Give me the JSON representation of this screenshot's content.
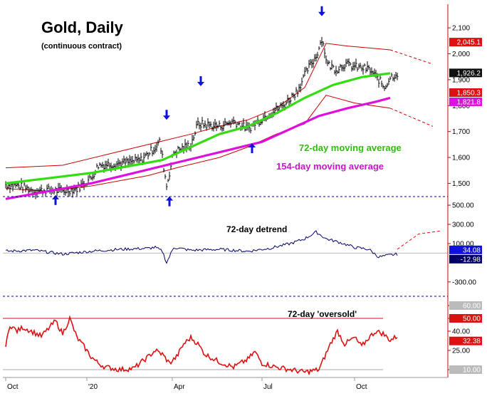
{
  "colors": {
    "price_bars": "#000000",
    "channel": "#cc0000",
    "ma72": "#33dd11",
    "ma154": "#dd11dd",
    "arrows": "#1111dd",
    "detrend": "#000066",
    "oversold": "#dd1111",
    "divider": "#000099",
    "right_axis": "#cc0000"
  },
  "x_axis": {
    "labels": [
      {
        "text": "Oct",
        "index": 0
      },
      {
        "text": "'20",
        "index": 57
      },
      {
        "text": "Apr",
        "index": 117
      },
      {
        "text": "Jul",
        "index": 180
      },
      {
        "text": "Oct",
        "index": 245
      }
    ]
  },
  "chart_data": [
    {
      "type": "line",
      "title": "Gold, Daily",
      "subtitle": "(continuous contract)",
      "y_ticks": [
        1500,
        1600,
        1700,
        1800,
        1900,
        2000,
        2100
      ],
      "y_tick_labels": [
        "1,500",
        "1,600",
        "1,700",
        "1,800",
        "1,900",
        "2,000",
        "2,100"
      ],
      "ylim": [
        1460,
        2180
      ],
      "n_points": 260,
      "price_keypoints": [
        [
          0,
          1495
        ],
        [
          10,
          1490
        ],
        [
          20,
          1470
        ],
        [
          30,
          1475
        ],
        [
          40,
          1470
        ],
        [
          50,
          1480
        ],
        [
          60,
          1520
        ],
        [
          65,
          1570
        ],
        [
          75,
          1575
        ],
        [
          85,
          1580
        ],
        [
          95,
          1590
        ],
        [
          105,
          1640
        ],
        [
          108,
          1660
        ],
        [
          110,
          1600
        ],
        [
          113,
          1490
        ],
        [
          118,
          1620
        ],
        [
          130,
          1650
        ],
        [
          135,
          1730
        ],
        [
          150,
          1720
        ],
        [
          160,
          1740
        ],
        [
          170,
          1710
        ],
        [
          175,
          1730
        ],
        [
          185,
          1770
        ],
        [
          195,
          1800
        ],
        [
          205,
          1860
        ],
        [
          212,
          1940
        ],
        [
          218,
          1990
        ],
        [
          222,
          2060
        ],
        [
          226,
          1960
        ],
        [
          232,
          1940
        ],
        [
          238,
          1960
        ],
        [
          245,
          1950
        ],
        [
          255,
          1940
        ],
        [
          262,
          1900
        ],
        [
          266,
          1870
        ],
        [
          270,
          1910
        ],
        [
          275,
          1925
        ]
      ],
      "series": [
        {
          "name": "72-day moving average",
          "keypoints": [
            [
              0,
              1500
            ],
            [
              30,
              1520
            ],
            [
              60,
              1540
            ],
            [
              90,
              1570
            ],
            [
              110,
              1590
            ],
            [
              130,
              1640
            ],
            [
              150,
              1690
            ],
            [
              170,
              1720
            ],
            [
              190,
              1770
            ],
            [
              210,
              1830
            ],
            [
              230,
              1880
            ],
            [
              250,
              1910
            ],
            [
              270,
              1925
            ]
          ]
        },
        {
          "name": "154-day moving average",
          "keypoints": [
            [
              0,
              1440
            ],
            [
              30,
              1470
            ],
            [
              60,
              1500
            ],
            [
              90,
              1540
            ],
            [
              120,
              1580
            ],
            [
              150,
              1620
            ],
            [
              180,
              1660
            ],
            [
              200,
              1710
            ],
            [
              220,
              1760
            ],
            [
              240,
              1790
            ],
            [
              260,
              1815
            ],
            [
              270,
              1830
            ]
          ]
        }
      ],
      "channel_upper": [
        [
          0,
          1560
        ],
        [
          40,
          1570
        ],
        [
          70,
          1610
        ],
        [
          100,
          1650
        ],
        [
          130,
          1690
        ],
        [
          150,
          1720
        ],
        [
          170,
          1745
        ],
        [
          190,
          1790
        ],
        [
          210,
          1870
        ],
        [
          225,
          2040
        ],
        [
          240,
          2030
        ],
        [
          270,
          2015
        ]
      ],
      "channel_upper_projection": [
        [
          270,
          2015
        ],
        [
          300,
          1960
        ]
      ],
      "channel_lower": [
        [
          0,
          1480
        ],
        [
          30,
          1470
        ],
        [
          60,
          1490
        ],
        [
          80,
          1510
        ],
        [
          100,
          1530
        ],
        [
          120,
          1560
        ],
        [
          150,
          1600
        ],
        [
          170,
          1640
        ],
        [
          190,
          1690
        ],
        [
          210,
          1730
        ],
        [
          225,
          1840
        ],
        [
          245,
          1810
        ],
        [
          270,
          1790
        ]
      ],
      "channel_lower_projection": [
        [
          270,
          1790
        ],
        [
          300,
          1720
        ]
      ],
      "arrows_down_at": [
        [
          113,
          1745
        ],
        [
          137,
          1875
        ],
        [
          222,
          2145
        ]
      ],
      "arrows_up_at": [
        [
          35,
          1455
        ],
        [
          115,
          1450
        ],
        [
          173,
          1655
        ]
      ],
      "annotations": [
        "72-day moving average",
        "154-day moving average"
      ],
      "value_boxes": [
        {
          "label": "2,045.1",
          "value": 2045.1,
          "color": "#dd1111",
          "text_color": "#ffffff"
        },
        {
          "label": "1,926.2",
          "value": 1926.2,
          "color": "#111111",
          "text_color": "#ffffff"
        },
        {
          "label": "1,850.3",
          "value": 1850.3,
          "color": "#dd1111",
          "text_color": "#ffffff"
        },
        {
          "label": "1,821.8",
          "value": 1821.8,
          "color": "#dd11dd",
          "text_color": "#ffffff"
        }
      ]
    },
    {
      "type": "line",
      "title": "72-day detrend",
      "y_ticks": [
        -300,
        100,
        300,
        500
      ],
      "y_tick_labels": [
        "-300.00",
        "100.00",
        "300.00",
        "500.00"
      ],
      "ylim": [
        -420,
        560
      ],
      "zero_line": 0,
      "series": [
        {
          "name": "72-day detrend",
          "keypoints": [
            [
              0,
              20
            ],
            [
              20,
              30
            ],
            [
              40,
              -10
            ],
            [
              60,
              20
            ],
            [
              80,
              40
            ],
            [
              100,
              50
            ],
            [
              105,
              60
            ],
            [
              110,
              20
            ],
            [
              113,
              -100
            ],
            [
              118,
              60
            ],
            [
              130,
              30
            ],
            [
              150,
              40
            ],
            [
              170,
              20
            ],
            [
              185,
              50
            ],
            [
              200,
              100
            ],
            [
              210,
              150
            ],
            [
              218,
              220
            ],
            [
              225,
              150
            ],
            [
              235,
              110
            ],
            [
              245,
              60
            ],
            [
              255,
              40
            ],
            [
              262,
              -40
            ],
            [
              270,
              -20
            ],
            [
              275,
              -10
            ]
          ]
        }
      ],
      "projection": [
        [
          275,
          40
        ],
        [
          290,
          200
        ],
        [
          305,
          230
        ]
      ],
      "value_boxes": [
        {
          "label": "34.08",
          "value": 34.08,
          "color": "#1111dd",
          "text_color": "#ffffff"
        },
        {
          "label": "-12.98",
          "value": -12.98,
          "color": "#000066",
          "text_color": "#ffffff"
        }
      ]
    },
    {
      "type": "line",
      "title": "72-day 'oversold'",
      "y_ticks": [
        10,
        25,
        40,
        50,
        60
      ],
      "y_tick_labels": [
        "10.00",
        "25.00",
        "40.00",
        "50.00",
        "60.00"
      ],
      "ylim": [
        5,
        65
      ],
      "reference_lines": [
        50,
        10
      ],
      "series": [
        {
          "name": "72-day 'oversold'",
          "keypoints": [
            [
              0,
              28
            ],
            [
              3,
              45
            ],
            [
              8,
              40
            ],
            [
              12,
              43
            ],
            [
              18,
              40
            ],
            [
              25,
              36
            ],
            [
              30,
              42
            ],
            [
              35,
              48
            ],
            [
              40,
              38
            ],
            [
              45,
              50
            ],
            [
              50,
              35
            ],
            [
              55,
              28
            ],
            [
              60,
              20
            ],
            [
              65,
              15
            ],
            [
              70,
              12
            ],
            [
              80,
              10
            ],
            [
              90,
              11
            ],
            [
              100,
              20
            ],
            [
              105,
              25
            ],
            [
              110,
              22
            ],
            [
              115,
              15
            ],
            [
              120,
              20
            ],
            [
              125,
              30
            ],
            [
              130,
              35
            ],
            [
              135,
              30
            ],
            [
              140,
              22
            ],
            [
              150,
              16
            ],
            [
              160,
              12
            ],
            [
              170,
              18
            ],
            [
              175,
              24
            ],
            [
              180,
              15
            ],
            [
              190,
              12
            ],
            [
              200,
              10
            ],
            [
              210,
              8
            ],
            [
              220,
              10
            ],
            [
              228,
              30
            ],
            [
              233,
              40
            ],
            [
              238,
              30
            ],
            [
              245,
              35
            ],
            [
              250,
              28
            ],
            [
              255,
              35
            ],
            [
              260,
              40
            ],
            [
              265,
              38
            ],
            [
              270,
              33
            ],
            [
              275,
              36
            ]
          ]
        }
      ],
      "value_boxes": [
        {
          "label": "60.00",
          "value": 60,
          "color": "#bbbbbb",
          "text_color": "#ffffff"
        },
        {
          "label": "50.00",
          "value": 50,
          "color": "#dd1111",
          "text_color": "#ffffff"
        },
        {
          "label": "32.38",
          "value": 32.38,
          "color": "#dd1111",
          "text_color": "#ffffff"
        },
        {
          "label": "10.00",
          "value": 10,
          "color": "#bbbbbb",
          "text_color": "#ffffff"
        }
      ]
    }
  ]
}
